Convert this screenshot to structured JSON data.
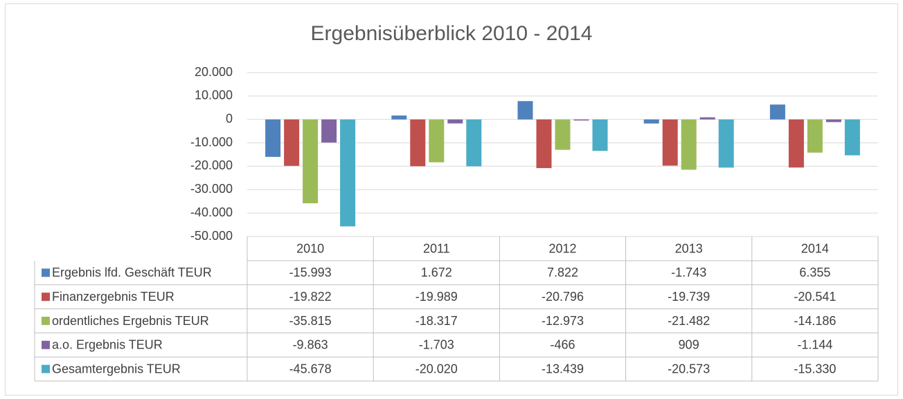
{
  "chart_data": {
    "type": "bar",
    "title": "Ergebnisüberblick 2010 - 2014",
    "categories": [
      "2010",
      "2011",
      "2012",
      "2013",
      "2014"
    ],
    "series": [
      {
        "name": "Ergebnis lfd. Geschäft TEUR",
        "color": "#4f81bd",
        "values": [
          -15993,
          1672,
          7822,
          -1743,
          6355
        ],
        "value_labels": [
          "-15.993",
          "1.672",
          "7.822",
          "-1.743",
          "6.355"
        ]
      },
      {
        "name": "Finanzergebnis TEUR",
        "color": "#c0504d",
        "values": [
          -19822,
          -19989,
          -20796,
          -19739,
          -20541
        ],
        "value_labels": [
          "-19.822",
          "-19.989",
          "-20.796",
          "-19.739",
          "-20.541"
        ]
      },
      {
        "name": "ordentliches Ergebnis TEUR",
        "color": "#9bbb59",
        "values": [
          -35815,
          -18317,
          -12973,
          -21482,
          -14186
        ],
        "value_labels": [
          "-35.815",
          "-18.317",
          "-12.973",
          "-21.482",
          "-14.186"
        ]
      },
      {
        "name": "a.o. Ergebnis TEUR",
        "color": "#8064a2",
        "values": [
          -9863,
          -1703,
          -466,
          909,
          -1144
        ],
        "value_labels": [
          "-9.863",
          "-1.703",
          "-466",
          "909",
          "-1.144"
        ]
      },
      {
        "name": "Gesamtergebnis TEUR",
        "color": "#4bacc6",
        "values": [
          -45678,
          -20020,
          -13439,
          -20573,
          -15330
        ],
        "value_labels": [
          "-45.678",
          "-20.020",
          "-13.439",
          "-20.573",
          "-15.330"
        ]
      }
    ],
    "ylim": [
      -50000,
      20000
    ],
    "yticks": [
      {
        "value": -50000,
        "label": "-50.000"
      },
      {
        "value": -40000,
        "label": "-40.000"
      },
      {
        "value": -30000,
        "label": "-30.000"
      },
      {
        "value": -20000,
        "label": "-20.000"
      },
      {
        "value": -10000,
        "label": "-10.000"
      },
      0,
      {
        "value": 10000,
        "label": "10.000"
      },
      {
        "value": 20000,
        "label": "20.000"
      }
    ],
    "grid": true
  }
}
